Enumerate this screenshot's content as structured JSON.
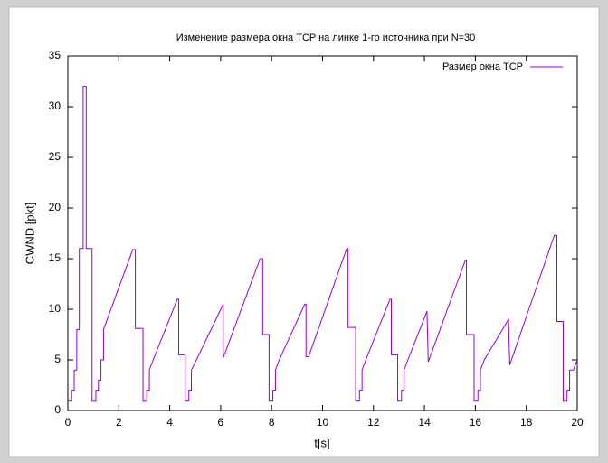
{
  "chart_data": {
    "type": "line",
    "title": "Изменение размера окна TCP на линке 1-го источника при N=30",
    "x_label": "t[s]",
    "y_label": "CWND [pkt]",
    "x": [
      0,
      0.15,
      0.15,
      0.25,
      0.25,
      0.35,
      0.35,
      0.45,
      0.45,
      0.6,
      0.6,
      0.72,
      0.72,
      0.95,
      0.95,
      1.1,
      1.1,
      1.2,
      1.2,
      1.3,
      1.3,
      1.4,
      1.4,
      2.55,
      2.65,
      2.65,
      2.95,
      2.95,
      3.1,
      3.1,
      3.2,
      3.2,
      3.35,
      4.3,
      4.35,
      4.35,
      4.6,
      4.6,
      4.75,
      4.75,
      4.85,
      4.85,
      5.05,
      6.1,
      6.1,
      7.55,
      7.65,
      7.65,
      7.9,
      7.9,
      8.05,
      8.05,
      8.15,
      8.15,
      8.3,
      9.3,
      9.35,
      9.35,
      9.45,
      10.95,
      11.0,
      11.0,
      11.3,
      11.3,
      11.45,
      11.45,
      11.55,
      11.55,
      11.7,
      12.65,
      12.7,
      12.7,
      12.95,
      12.95,
      13.1,
      13.1,
      13.2,
      13.2,
      13.35,
      14.1,
      14.15,
      15.6,
      15.65,
      15.65,
      15.95,
      15.95,
      16.1,
      16.1,
      16.2,
      16.2,
      16.35,
      17.3,
      17.35,
      19.1,
      19.2,
      19.2,
      19.45,
      19.45,
      19.6,
      19.6,
      19.7,
      19.7,
      19.85,
      20
    ],
    "series": [
      {
        "name": "Размер окна TCP",
        "color": "#9400d3",
        "values": [
          1,
          1,
          2,
          2,
          4,
          4,
          8,
          8,
          16,
          16,
          32,
          32,
          16,
          16,
          1,
          1,
          2,
          2,
          3,
          3,
          5,
          5,
          8,
          15.9,
          15.9,
          8.1,
          8.1,
          1,
          1,
          2,
          2,
          4,
          5,
          11,
          11,
          5.5,
          5.5,
          1,
          1,
          2,
          2,
          4,
          5,
          10.5,
          5.2,
          15,
          15,
          7.5,
          7.5,
          1,
          1,
          2,
          2,
          4,
          5,
          10.5,
          10.5,
          5.3,
          5.3,
          16,
          16,
          8.2,
          8.2,
          1,
          1,
          2,
          2,
          4,
          5,
          11,
          11,
          5.5,
          5.5,
          1,
          1,
          2,
          2,
          4,
          5,
          9.8,
          4.8,
          14.8,
          14.8,
          7.5,
          7.5,
          1,
          1,
          2,
          2,
          4,
          5,
          9,
          4.5,
          17.3,
          17.3,
          8.8,
          8.8,
          1,
          1,
          2,
          2,
          4,
          4,
          5
        ]
      }
    ],
    "xlim": [
      0,
      20
    ],
    "xticks": [
      0,
      2,
      4,
      6,
      8,
      10,
      12,
      14,
      16,
      18,
      20
    ],
    "ylim": [
      0,
      35
    ],
    "yticks": [
      0,
      5,
      10,
      15,
      20,
      25,
      30,
      35
    ],
    "grid": false,
    "legend": "top-right"
  }
}
